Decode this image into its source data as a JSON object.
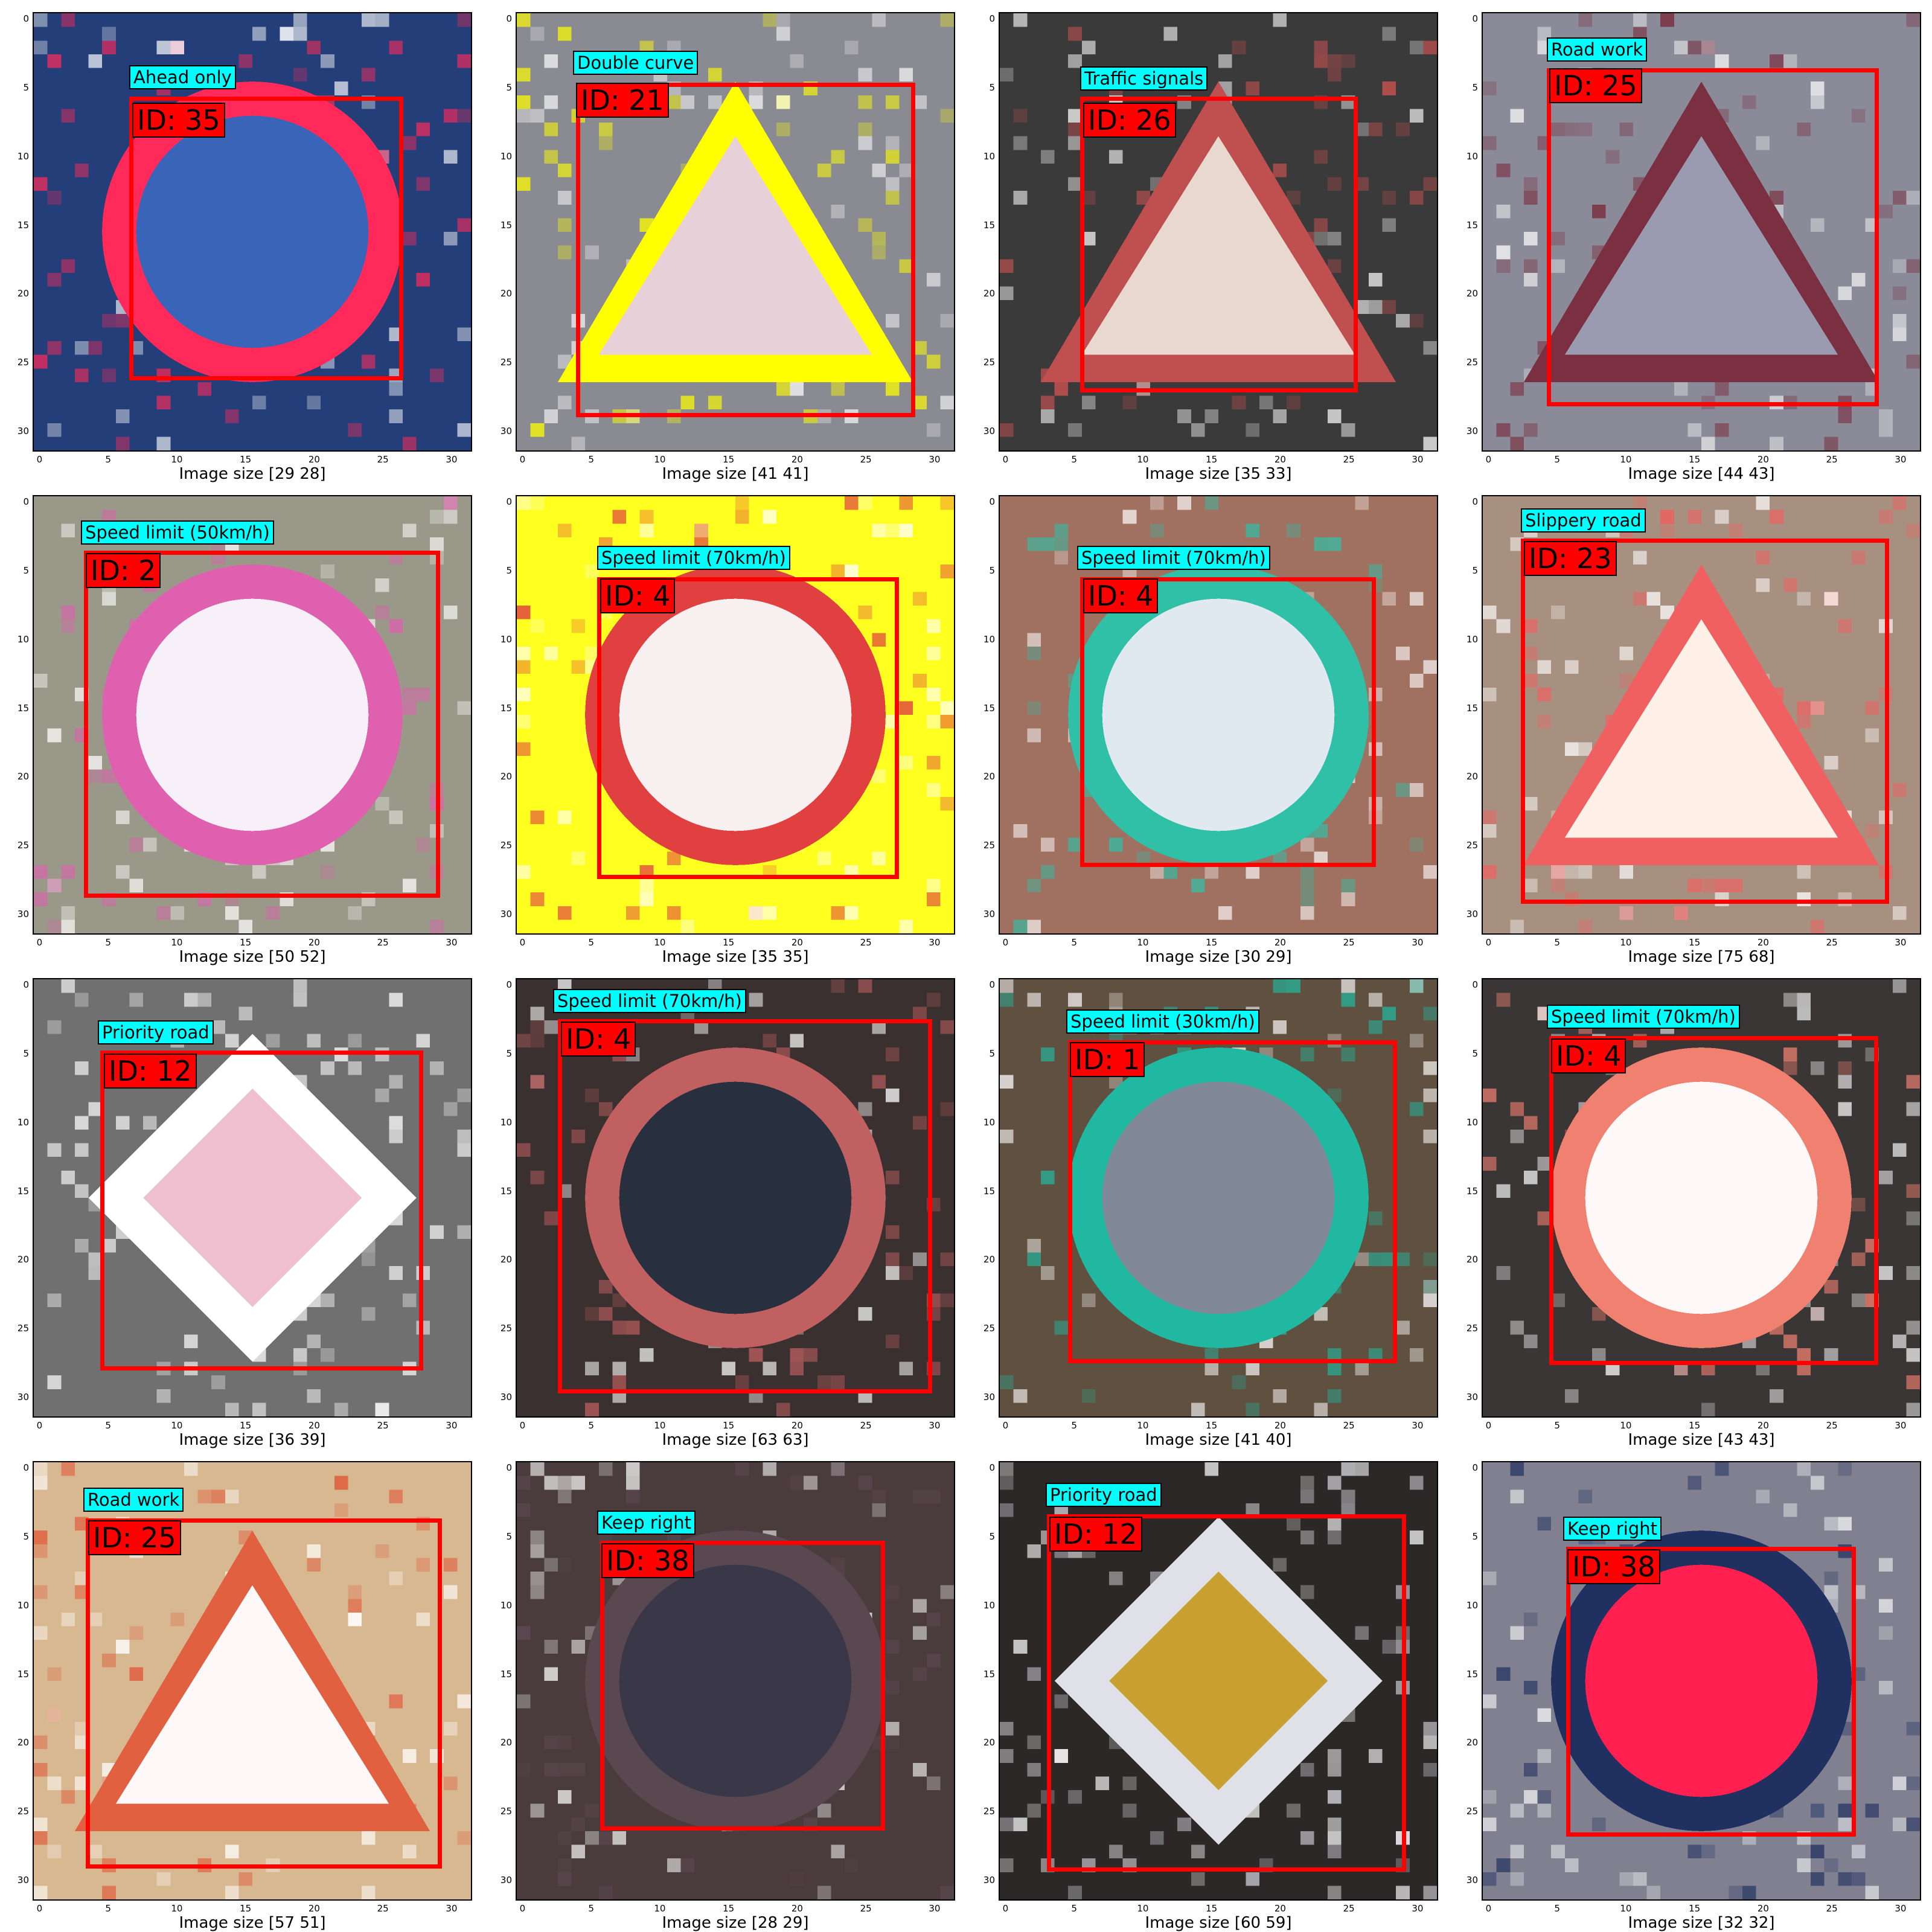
{
  "axis_ticks": [
    "0",
    "5",
    "10",
    "15",
    "20",
    "25",
    "30"
  ],
  "panels": [
    {
      "name": "Ahead only",
      "id": "ID: 35",
      "caption": "Image size [29 28]",
      "bg": "#233e78",
      "sign": "circle",
      "sign_color": "#3a64b8",
      "accent": "#ff2a5a"
    },
    {
      "name": "Double curve",
      "id": "ID: 21",
      "caption": "Image size [41 41]",
      "bg": "#8a8a92",
      "sign": "triangle",
      "sign_color": "#e8d0d8",
      "accent": "#ffff00"
    },
    {
      "name": "Traffic signals",
      "id": "ID: 26",
      "caption": "Image size [35 33]",
      "bg": "#3a3a3a",
      "sign": "triangle",
      "sign_color": "#e8d8d0",
      "accent": "#c05050"
    },
    {
      "name": "Road work",
      "id": "ID: 25",
      "caption": "Image size [44 43]",
      "bg": "#8a8a98",
      "sign": "triangle",
      "sign_color": "#9a9ab0",
      "accent": "#7a3040"
    },
    {
      "name": "Speed limit (50km/h)",
      "id": "ID: 2",
      "caption": "Image size [50 52]",
      "bg": "#9a9888",
      "sign": "circle",
      "sign_color": "#f8f0f8",
      "accent": "#e060b0"
    },
    {
      "name": "Speed limit (70km/h)",
      "id": "ID: 4",
      "caption": "Image size [35 35]",
      "bg": "#ffff20",
      "sign": "circle",
      "sign_color": "#f8f0f0",
      "accent": "#e04040"
    },
    {
      "name": "Speed limit (70km/h)",
      "id": "ID: 4",
      "caption": "Image size [30 29]",
      "bg": "#a07060",
      "sign": "circle",
      "sign_color": "#e0e8f0",
      "accent": "#30c0a8"
    },
    {
      "name": "Slippery road",
      "id": "ID: 23",
      "caption": "Image size [75 68]",
      "bg": "#a89080",
      "sign": "triangle",
      "sign_color": "#fff0e8",
      "accent": "#f06060"
    },
    {
      "name": "Priority road",
      "id": "ID: 12",
      "caption": "Image size [36 39]",
      "bg": "#707070",
      "sign": "diamond",
      "sign_color": "#f0c0d0",
      "accent": "#ffffff"
    },
    {
      "name": "Speed limit (70km/h)",
      "id": "ID: 4",
      "caption": "Image size [63 63]",
      "bg": "#3a3030",
      "sign": "circle",
      "sign_color": "#283040",
      "accent": "#c06060"
    },
    {
      "name": "Speed limit (30km/h)",
      "id": "ID: 1",
      "caption": "Image size [41 40]",
      "bg": "#605040",
      "sign": "circle",
      "sign_color": "#808898",
      "accent": "#20b8a0"
    },
    {
      "name": "Speed limit (70km/h)",
      "id": "ID: 4",
      "caption": "Image size [43 43]",
      "bg": "#3a3636",
      "sign": "circle",
      "sign_color": "#fff8f8",
      "accent": "#f08070"
    },
    {
      "name": "Road work",
      "id": "ID: 25",
      "caption": "Image size [57 51]",
      "bg": "#d8b890",
      "sign": "triangle",
      "sign_color": "#fff8f8",
      "accent": "#e06040"
    },
    {
      "name": "Keep right",
      "id": "ID: 38",
      "caption": "Image size [28 29]",
      "bg": "#4a3c3c",
      "sign": "circle",
      "sign_color": "#3a3848",
      "accent": "#5a4850"
    },
    {
      "name": "Priority road",
      "id": "ID: 12",
      "caption": "Image size [60 59]",
      "bg": "#2c2828",
      "sign": "diamond",
      "sign_color": "#c8a030",
      "accent": "#e0e0e8"
    },
    {
      "name": "Keep right",
      "id": "ID: 38",
      "caption": "Image size [32 32]",
      "bg": "#808090",
      "sign": "circle",
      "sign_color": "#ff2050",
      "accent": "#203060"
    }
  ]
}
